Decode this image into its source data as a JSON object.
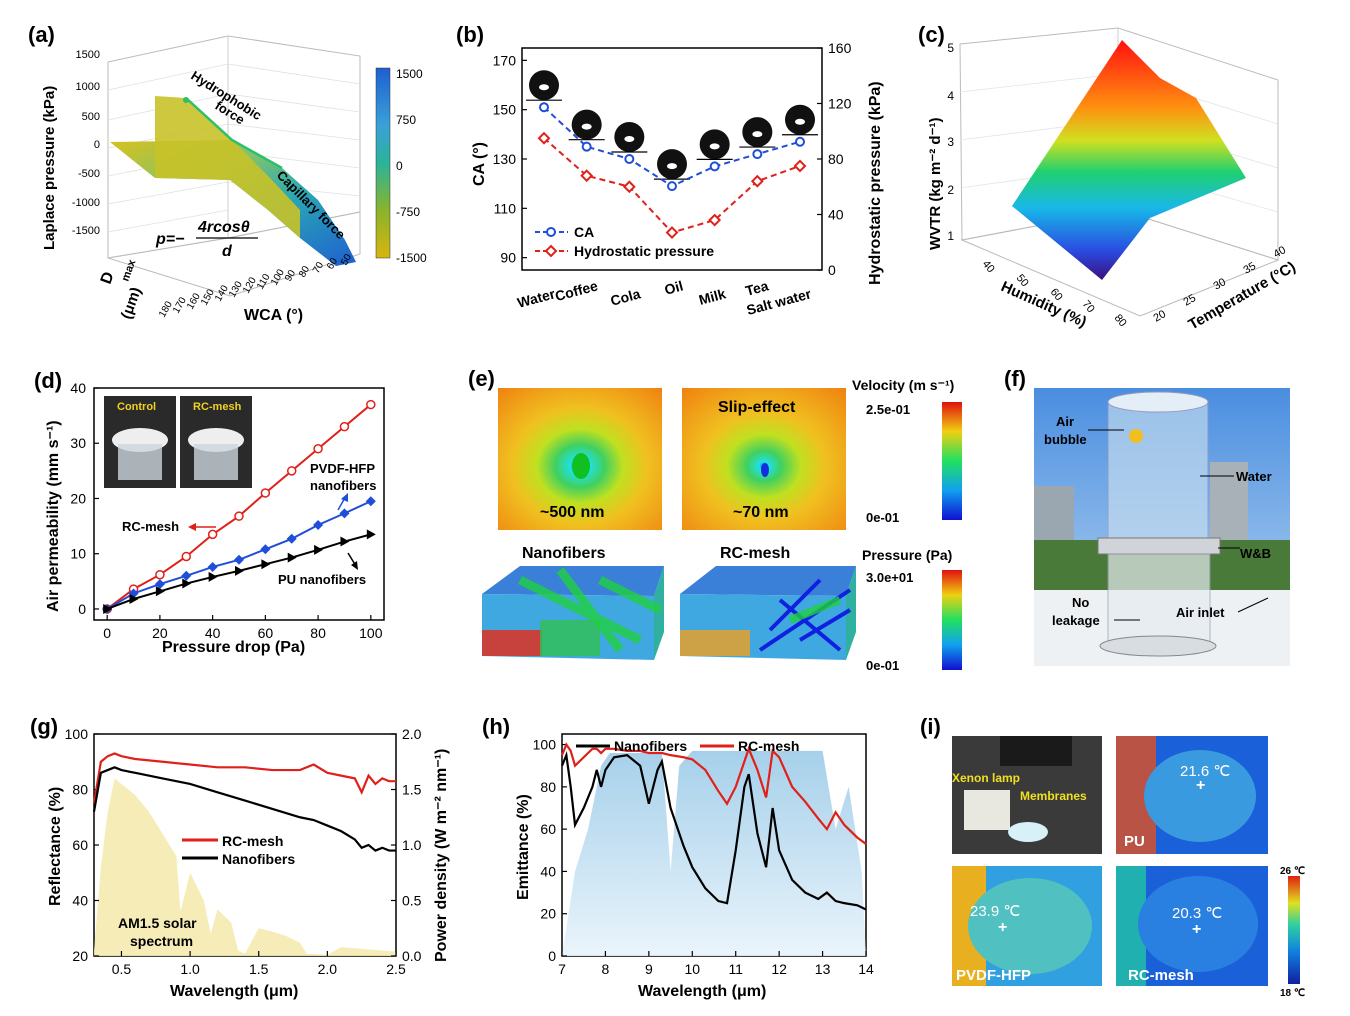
{
  "panels": {
    "a": {
      "label": "(a)",
      "zlabel": "Laplace pressure (kPa)",
      "zticks": [
        "1500",
        "1000",
        "500",
        "0",
        "-500",
        "-1000",
        "-1500"
      ],
      "xlabel": "WCA (°)",
      "xticks": [
        "180",
        "170",
        "160",
        "150",
        "140",
        "130",
        "120",
        "110",
        "100",
        "90",
        "80",
        "70",
        "60",
        "50"
      ],
      "ylabel_main": "D",
      "ylabel_sub": "max",
      "ylabel_unit": "(μm)",
      "ann1": "Hydrophobic force",
      "ann1a": "Hydrophobic",
      "ann1b": "force",
      "ann2": "Capillary force",
      "formula_p": "p=−",
      "formula_num": "4rcosθ",
      "formula_den": "d",
      "colorbar": [
        "1500",
        "750",
        "0",
        "-750",
        "-1500"
      ]
    },
    "b": {
      "label": "(b)",
      "ylabel": "CA (°)",
      "y2label": "Hydrostatic pressure (kPa)",
      "legend_ca": "CA",
      "legend_hp": "Hydrostatic pressure"
    },
    "c": {
      "label": "(c)",
      "zlabel": "WVTR (kg m⁻² d⁻¹)",
      "zticks": [
        "5",
        "4",
        "3",
        "2",
        "1"
      ],
      "xlabel": "Humidity (%)",
      "xticks": [
        "40",
        "50",
        "60",
        "70",
        "80"
      ],
      "ylabel": "Temperature (°C)",
      "yticks": [
        "20",
        "25",
        "30",
        "35",
        "40"
      ]
    },
    "d": {
      "label": "(d)",
      "ylabel": "Air permeability (mm s⁻¹)",
      "xlabel": "Pressure drop (Pa)",
      "inset_control": "Control",
      "inset_rc": "RC-mesh",
      "ann_rc": "RC-mesh",
      "ann_pvdf1": "PVDF-HFP",
      "ann_pvdf2": "nanofibers",
      "ann_pu": "PU nanofibers"
    },
    "e": {
      "label": "(e)",
      "velocity_title": "Velocity (m s⁻¹)",
      "vel_max": "2.5e-01",
      "vel_min": "0e-01",
      "slip": "Slip-effect",
      "size1": "~500 nm",
      "size2": "~70 nm",
      "pressure_title": "Pressure (Pa)",
      "p_max": "3.0e+01",
      "p_min": "0e-01",
      "nano": "Nanofibers",
      "rc": "RC-mesh"
    },
    "f": {
      "label": "(f)",
      "air_bubble1": "Air",
      "air_bubble2": "bubble",
      "water": "Water",
      "wb": "W&B",
      "no_leak1": "No",
      "no_leak2": "leakage",
      "air_inlet": "Air inlet"
    },
    "g": {
      "label": "(g)",
      "ylabel": "Reflectance (%)",
      "y2label": "Power density (W m⁻² nm⁻¹)",
      "xlabel": "Wavelength (μm)",
      "legend_rc": "RC-mesh",
      "legend_nano": "Nanofibers",
      "am1": "AM1.5 solar",
      "am2": "spectrum"
    },
    "h": {
      "label": "(h)",
      "ylabel": "Emittance (%)",
      "xlabel": "Wavelength (μm)",
      "legend_nano": "Nanofibers",
      "legend_rc": "RC-mesh"
    },
    "i": {
      "label": "(i)",
      "xenon": "Xenon lamp",
      "membranes": "Membranes",
      "pu": "PU",
      "pvdf": "PVDF-HFP",
      "rc": "RC-mesh",
      "t_pu": "21.6 ℃",
      "t_pvdf": "23.9 ℃",
      "t_rc": "20.3 ℃",
      "cb_max": "26 ℃",
      "cb_min": "18 ℃"
    }
  },
  "chart_data": [
    {
      "panel": "b",
      "type": "line",
      "categories": [
        "Water",
        "Coffee",
        "Cola",
        "Oil",
        "Milk",
        "Tea",
        "Salt water"
      ],
      "series": [
        {
          "name": "CA",
          "axis": "left",
          "values": [
            151,
            135,
            130,
            119,
            127,
            132,
            137
          ]
        },
        {
          "name": "Hydrostatic pressure",
          "axis": "right",
          "values": [
            95,
            68,
            60,
            27,
            36,
            64,
            75
          ]
        }
      ],
      "ylim": [
        85,
        175
      ],
      "y2lim": [
        0,
        160
      ],
      "yticks": [
        90,
        110,
        130,
        150,
        170
      ],
      "y2ticks": [
        0,
        40,
        80,
        120,
        160
      ]
    },
    {
      "panel": "d",
      "type": "line",
      "xlabel": "Pressure drop (Pa)",
      "ylabel": "Air permeability (mm s⁻¹)",
      "xlim": [
        -5,
        105
      ],
      "ylim": [
        -2,
        40
      ],
      "xticks": [
        0,
        20,
        40,
        60,
        80,
        100
      ],
      "yticks": [
        0,
        10,
        20,
        30,
        40
      ],
      "x": [
        0,
        10,
        20,
        30,
        40,
        50,
        60,
        70,
        80,
        90,
        100
      ],
      "series": [
        {
          "name": "RC-mesh",
          "color": "#e0201a",
          "values": [
            0,
            3.6,
            6.2,
            9.5,
            13.5,
            16.8,
            21,
            25,
            29,
            33,
            37
          ]
        },
        {
          "name": "PVDF-HFP nanofibers",
          "color": "#1f4ed8",
          "values": [
            0,
            2.8,
            4.5,
            6,
            7.6,
            8.9,
            10.8,
            12.7,
            15.2,
            17.3,
            19.5
          ]
        },
        {
          "name": "PU nanofibers",
          "color": "#000000",
          "values": [
            0,
            1.8,
            3.2,
            4.6,
            5.8,
            6.9,
            8.1,
            9.3,
            10.7,
            12.2,
            13.5
          ]
        }
      ]
    },
    {
      "panel": "g",
      "type": "line",
      "xlabel": "Wavelength (μm)",
      "ylabel": "Reflectance (%)",
      "y2label": "Power density (W m⁻² nm⁻¹)",
      "xlim": [
        0.3,
        2.5
      ],
      "ylim": [
        20,
        100
      ],
      "y2lim": [
        0,
        2
      ],
      "xticks": [
        0.5,
        1.0,
        1.5,
        2.0,
        2.5
      ],
      "yticks": [
        20,
        40,
        60,
        80,
        100
      ],
      "y2ticks": [
        0.0,
        0.5,
        1.0,
        1.5,
        2.0
      ],
      "x": [
        0.3,
        0.35,
        0.4,
        0.45,
        0.5,
        0.6,
        0.8,
        1.0,
        1.2,
        1.4,
        1.6,
        1.8,
        1.9,
        2.0,
        2.1,
        2.2,
        2.25,
        2.3,
        2.35,
        2.4,
        2.45,
        2.5
      ],
      "series": [
        {
          "name": "RC-mesh",
          "color": "#e0201a",
          "values": [
            75,
            90,
            92,
            93,
            92,
            91,
            90,
            89,
            88,
            88,
            87,
            87,
            89,
            86,
            85,
            84,
            79,
            85,
            82,
            84,
            83,
            83
          ]
        },
        {
          "name": "Nanofibers",
          "color": "#000000",
          "values": [
            72,
            86,
            87,
            88,
            87,
            86,
            84,
            82,
            79,
            76,
            73,
            70,
            69,
            67,
            65,
            62,
            59,
            60,
            58,
            59,
            58,
            58
          ]
        }
      ],
      "solar": {
        "name": "AM1.5 solar spectrum",
        "x": [
          0.3,
          0.35,
          0.4,
          0.45,
          0.5,
          0.55,
          0.6,
          0.7,
          0.75,
          0.8,
          0.9,
          0.93,
          1.0,
          1.1,
          1.15,
          1.2,
          1.3,
          1.35,
          1.4,
          1.5,
          1.6,
          1.7,
          1.8,
          1.85,
          2.0,
          2.1,
          2.2,
          2.3,
          2.4,
          2.5
        ],
        "values": [
          0.05,
          0.8,
          1.3,
          1.6,
          1.55,
          1.5,
          1.45,
          1.3,
          1.2,
          1.1,
          0.9,
          0.4,
          0.75,
          0.5,
          0.2,
          0.42,
          0.3,
          0.05,
          0.02,
          0.25,
          0.22,
          0.18,
          0.12,
          0.02,
          0.01,
          0.08,
          0.07,
          0.06,
          0.05,
          0.04
        ]
      }
    },
    {
      "panel": "h",
      "type": "line",
      "xlabel": "Wavelength (μm)",
      "ylabel": "Emittance (%)",
      "xlim": [
        7,
        14
      ],
      "ylim": [
        0,
        105
      ],
      "xticks": [
        7,
        8,
        9,
        10,
        11,
        12,
        13,
        14
      ],
      "yticks": [
        0,
        20,
        40,
        60,
        80,
        100
      ],
      "x": [
        7,
        7.1,
        7.2,
        7.3,
        7.5,
        7.7,
        7.8,
        7.9,
        8.0,
        8.2,
        8.5,
        8.8,
        9.0,
        9.2,
        9.3,
        9.5,
        9.8,
        10,
        10.3,
        10.6,
        10.8,
        11.0,
        11.2,
        11.3,
        11.5,
        11.7,
        11.85,
        12.0,
        12.3,
        12.6,
        12.9,
        13.1,
        13.3,
        13.5,
        13.8,
        14
      ],
      "series": [
        {
          "name": "Nanofibers",
          "color": "#000000",
          "values": [
            90,
            95,
            80,
            62,
            70,
            80,
            88,
            80,
            88,
            94,
            95,
            90,
            72,
            88,
            92,
            70,
            52,
            42,
            32,
            26,
            25,
            50,
            80,
            86,
            58,
            42,
            70,
            50,
            36,
            30,
            27,
            30,
            26,
            25,
            24,
            22
          ]
        },
        {
          "name": "RC-mesh",
          "color": "#e0201a",
          "values": [
            95,
            100,
            97,
            90,
            94,
            98,
            98,
            96,
            98,
            98,
            97,
            97,
            96,
            96,
            96,
            95,
            94,
            93,
            88,
            78,
            72,
            80,
            92,
            98,
            88,
            75,
            97,
            94,
            80,
            73,
            65,
            60,
            68,
            62,
            56,
            53
          ]
        }
      ]
    }
  ]
}
